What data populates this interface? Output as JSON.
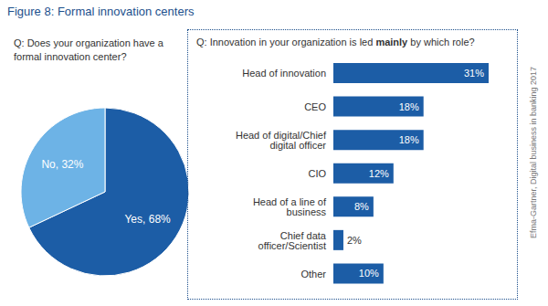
{
  "title": "Figure 8: Formal innovation centers",
  "source": "Efma-Gartner, Digital business in banking 2017",
  "chart_data": [
    {
      "type": "pie",
      "title": "Q: Does your organization have a formal innovation center?",
      "categories": [
        "Yes",
        "No"
      ],
      "values": [
        68,
        32
      ],
      "value_labels": [
        "Yes, 68%",
        "No, 32%"
      ],
      "colors": [
        "#1c5da6",
        "#6db3e6"
      ],
      "data_labels": true
    },
    {
      "type": "bar",
      "orientation": "horizontal",
      "title": "Q: Innovation in your organization is led mainly by which role?",
      "categories": [
        "Head of innovation",
        "CEO",
        "Head of digital/Chief digital officer",
        "CIO",
        "Head of a line of business",
        "Chief data officer/Scientist",
        "Other"
      ],
      "values": [
        31,
        18,
        18,
        12,
        8,
        2,
        10
      ],
      "value_labels": [
        "31%",
        "18%",
        "18%",
        "12%",
        "8%",
        "2%",
        "10%"
      ],
      "color": "#1c5da6",
      "data_labels": true,
      "tick_labels": "y"
    }
  ]
}
